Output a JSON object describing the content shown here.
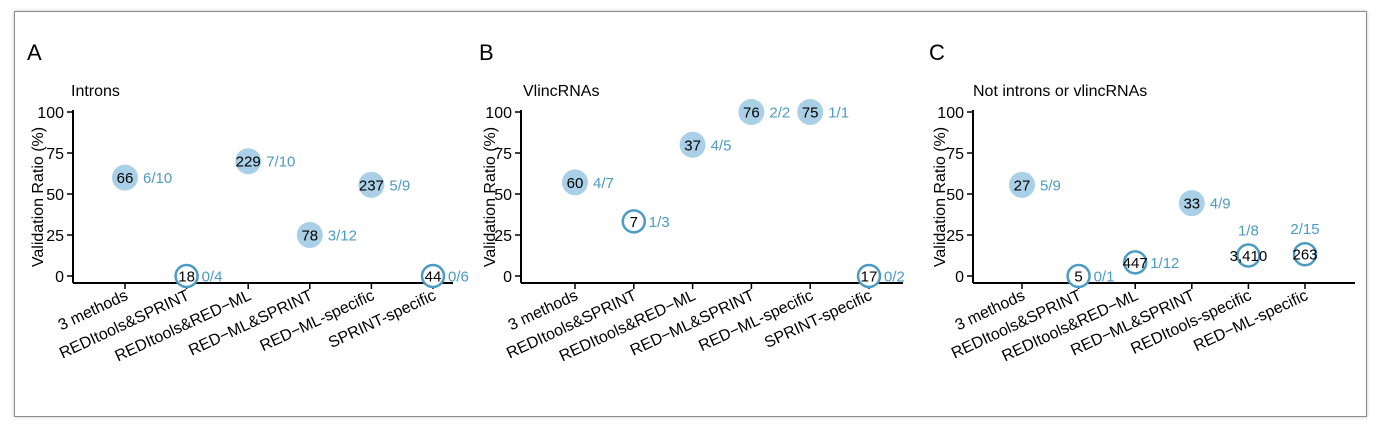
{
  "chart_data": [
    {
      "type": "scatter",
      "panel": "A",
      "subtitle": "Introns",
      "ylabel": "Validation Ratio (%)",
      "ylim": [
        0,
        100
      ],
      "yticks": [
        0,
        25,
        50,
        75,
        100
      ],
      "grid": false,
      "categories": [
        "3 methods",
        "REDItools&SPRINT",
        "REDItools&RED−ML",
        "RED−ML&SPRINT",
        "RED−ML-specific",
        "SPRINT-specific"
      ],
      "points": [
        {
          "category": "3 methods",
          "y": 60,
          "count": "66",
          "fraction": "6/10",
          "filled": true
        },
        {
          "category": "REDItools&SPRINT",
          "y": 0,
          "count": "18",
          "fraction": "0/4",
          "filled": false
        },
        {
          "category": "REDItools&RED−ML",
          "y": 70,
          "count": "229",
          "fraction": "7/10",
          "filled": true
        },
        {
          "category": "RED−ML&SPRINT",
          "y": 25,
          "count": "78",
          "fraction": "3/12",
          "filled": true
        },
        {
          "category": "RED−ML-specific",
          "y": 55.6,
          "count": "237",
          "fraction": "5/9",
          "filled": true
        },
        {
          "category": "SPRINT-specific",
          "y": 0,
          "count": "44",
          "fraction": "0/6",
          "filled": false
        }
      ]
    },
    {
      "type": "scatter",
      "panel": "B",
      "subtitle": "VlincRNAs",
      "ylabel": "Validation Ratio (%)",
      "ylim": [
        0,
        100
      ],
      "yticks": [
        0,
        25,
        50,
        75,
        100
      ],
      "grid": false,
      "categories": [
        "3 methods",
        "REDItools&SPRINT",
        "REDItools&RED−ML",
        "RED−ML&SPRINT",
        "RED−ML-specific",
        "SPRINT-specific"
      ],
      "points": [
        {
          "category": "3 methods",
          "y": 57.1,
          "count": "60",
          "fraction": "4/7",
          "filled": true
        },
        {
          "category": "REDItools&SPRINT",
          "y": 33.3,
          "count": "7",
          "fraction": "1/3",
          "filled": false
        },
        {
          "category": "REDItools&RED−ML",
          "y": 80,
          "count": "37",
          "fraction": "4/5",
          "filled": true
        },
        {
          "category": "RED−ML&SPRINT",
          "y": 100,
          "count": "76",
          "fraction": "2/2",
          "filled": true
        },
        {
          "category": "RED−ML-specific",
          "y": 100,
          "count": "75",
          "fraction": "1/1",
          "filled": true
        },
        {
          "category": "SPRINT-specific",
          "y": 0,
          "count": "17",
          "fraction": "0/2",
          "filled": false
        }
      ]
    },
    {
      "type": "scatter",
      "panel": "C",
      "subtitle": "Not introns or vlincRNAs",
      "ylabel": "Validation Ratio (%)",
      "ylim": [
        0,
        100
      ],
      "yticks": [
        0,
        25,
        50,
        75,
        100
      ],
      "grid": false,
      "categories": [
        "3 methods",
        "REDItools&SPRINT",
        "REDItools&RED−ML",
        "RED−ML&SPRINT",
        "REDItools-specific",
        "RED−ML-specific"
      ],
      "points": [
        {
          "category": "3 methods",
          "y": 55.6,
          "count": "27",
          "fraction": "5/9",
          "filled": true
        },
        {
          "category": "REDItools&SPRINT",
          "y": 0,
          "count": "5",
          "fraction": "0/1",
          "filled": false
        },
        {
          "category": "REDItools&RED−ML",
          "y": 8.3,
          "count": "447",
          "fraction": "1/12",
          "filled": false
        },
        {
          "category": "RED−ML&SPRINT",
          "y": 44.4,
          "count": "33",
          "fraction": "4/9",
          "filled": true
        },
        {
          "category": "REDItools-specific",
          "y": 12.5,
          "count": "3,410",
          "fraction": "1/8",
          "filled": false
        },
        {
          "category": "RED−ML-specific",
          "y": 13.3,
          "count": "263",
          "fraction": "2/15",
          "filled": false
        }
      ]
    }
  ],
  "colors": {
    "marker_fill": "#a9d0e6",
    "marker_ring": "#4c9bc5",
    "fraction_text": "#4c9bc5",
    "axis": "#000000"
  }
}
